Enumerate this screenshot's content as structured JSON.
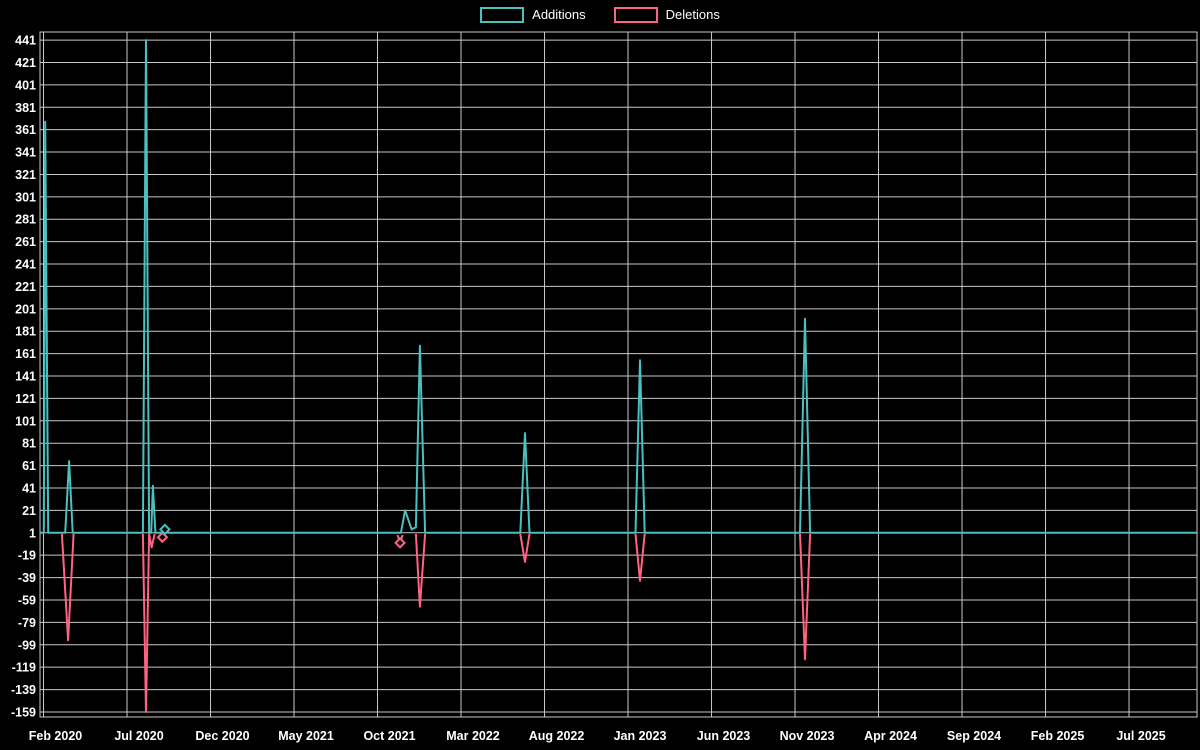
{
  "page": {
    "background": "#000000",
    "grid_color": "#c9c9c9",
    "text_color": "#ffffff"
  },
  "legend": {
    "items": [
      {
        "label": "Additions",
        "color": "#4bc0c0"
      },
      {
        "label": "Deletions",
        "color": "#ff6384"
      }
    ]
  },
  "chart_data": {
    "type": "line",
    "title": "",
    "xlabel": "",
    "ylabel": "",
    "legend_position": "top",
    "grid": true,
    "x_axis": {
      "unit": "months since Feb 2020",
      "tick_labels": [
        "Feb 2020",
        "Jul 2020",
        "Dec 2020",
        "May 2021",
        "Oct 2021",
        "Mar 2022",
        "Aug 2022",
        "Jan 2023",
        "Jun 2023",
        "Nov 2023",
        "Apr 2024",
        "Sep 2024",
        "Feb 2025",
        "Jul 2025"
      ],
      "tick_positions_months": [
        0,
        5,
        10,
        15,
        20,
        25,
        30,
        35,
        40,
        45,
        50,
        55,
        60,
        65
      ],
      "range_months": [
        -0.21,
        69.07
      ]
    },
    "y_axis": {
      "tick_values": [
        441,
        421,
        401,
        381,
        361,
        341,
        321,
        301,
        281,
        261,
        241,
        221,
        201,
        181,
        161,
        141,
        121,
        101,
        81,
        61,
        41,
        21,
        1,
        -19,
        -39,
        -59,
        -79,
        -99,
        -119,
        -139,
        -159
      ],
      "range": [
        -163.5,
        448.2
      ]
    },
    "series": [
      {
        "name": "Additions",
        "color": "#4bc0c0",
        "segments": [
          [
            [
              -0.2,
              1
            ],
            [
              0.02,
              1
            ],
            [
              0.1,
              368
            ],
            [
              0.28,
              1
            ],
            [
              1.3,
              1
            ],
            [
              1.53,
              65
            ],
            [
              1.75,
              1
            ],
            [
              5.95,
              1
            ],
            [
              6.14,
              441
            ],
            [
              6.32,
              1
            ],
            [
              6.45,
              1
            ],
            [
              6.55,
              43
            ],
            [
              6.7,
              1
            ],
            [
              7.1,
              1
            ],
            [
              7.27,
              4
            ],
            [
              7.45,
              1
            ],
            [
              21.4,
              1
            ],
            [
              21.65,
              21
            ],
            [
              22.05,
              4
            ],
            [
              22.3,
              6
            ],
            [
              22.54,
              168
            ],
            [
              22.85,
              1
            ],
            [
              28.55,
              1
            ],
            [
              28.83,
              90
            ],
            [
              29.1,
              1
            ],
            [
              35.45,
              1
            ],
            [
              35.72,
              155
            ],
            [
              36.0,
              1
            ],
            [
              45.3,
              1
            ],
            [
              45.6,
              192
            ],
            [
              45.9,
              1
            ],
            [
              69.05,
              1
            ]
          ]
        ]
      },
      {
        "name": "Deletions",
        "color": "#ff6384",
        "segments": [
          [
            [
              1.1,
              0
            ],
            [
              1.47,
              -95
            ],
            [
              1.8,
              0
            ]
          ],
          [
            [
              5.95,
              0
            ],
            [
              6.14,
              -159
            ],
            [
              6.32,
              0
            ],
            [
              6.48,
              -12
            ],
            [
              6.65,
              0
            ]
          ],
          [
            [
              21.2,
              -1
            ],
            [
              21.35,
              -8
            ],
            [
              21.5,
              -1
            ]
          ],
          [
            [
              22.3,
              0
            ],
            [
              22.54,
              -65
            ],
            [
              22.85,
              0
            ]
          ],
          [
            [
              28.55,
              0
            ],
            [
              28.83,
              -25
            ],
            [
              29.1,
              0
            ]
          ],
          [
            [
              35.45,
              0
            ],
            [
              35.72,
              -42
            ],
            [
              36.0,
              0
            ]
          ],
          [
            [
              45.3,
              0
            ],
            [
              45.6,
              -112
            ],
            [
              45.9,
              0
            ]
          ]
        ]
      }
    ],
    "markers": [
      {
        "series": "Deletions",
        "x": 7.12,
        "y": -3
      },
      {
        "series": "Additions",
        "x": 7.27,
        "y": 4
      },
      {
        "series": "Deletions",
        "x": 21.35,
        "y": -8
      }
    ]
  }
}
